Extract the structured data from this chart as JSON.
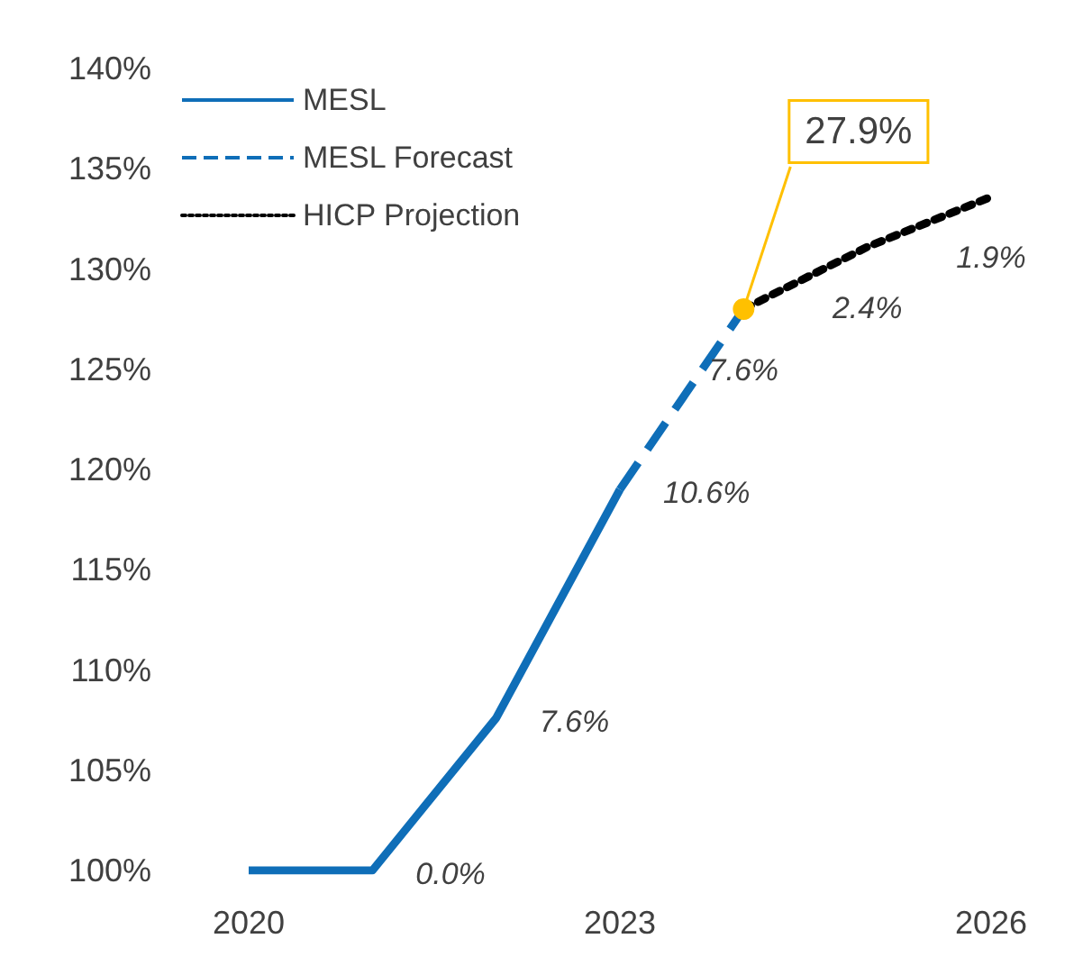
{
  "chart_data": {
    "type": "line",
    "series": [
      {
        "name": "MESL",
        "color": "#0f6eb8",
        "line_style": "solid",
        "x": [
          2020,
          2021,
          2022,
          2023
        ],
        "values": [
          100,
          100,
          107.6,
          119.0
        ]
      },
      {
        "name": "MESL Forecast",
        "color": "#0f6eb8",
        "line_style": "dashed",
        "x": [
          2023,
          2024
        ],
        "values": [
          119.0,
          128.0
        ]
      },
      {
        "name": "HICP Projection",
        "color": "#000000",
        "line_style": "dotted",
        "x": [
          2024,
          2025,
          2026
        ],
        "values": [
          128.0,
          131.1,
          133.6
        ]
      }
    ],
    "xlim": [
      2020,
      2026
    ],
    "xticks": [
      2020,
      2023,
      2026
    ],
    "ylim": [
      100,
      140
    ],
    "yticks": [
      {
        "value": 100,
        "label": "100%"
      },
      {
        "value": 105,
        "label": "105%"
      },
      {
        "value": 110,
        "label": "110%"
      },
      {
        "value": 115,
        "label": "115%"
      },
      {
        "value": 120,
        "label": "120%"
      },
      {
        "value": 125,
        "label": "125%"
      },
      {
        "value": 130,
        "label": "130%"
      },
      {
        "value": 135,
        "label": "135%"
      },
      {
        "value": 140,
        "label": "140%"
      }
    ],
    "annotations": [
      {
        "text": "0.0%",
        "x": 2021,
        "y": 100
      },
      {
        "text": "7.6%",
        "x": 2022,
        "y": 107.6
      },
      {
        "text": "10.6%",
        "x": 2023,
        "y": 119.0
      },
      {
        "text": "7.6%",
        "x": 2024,
        "y": 128.0
      },
      {
        "text": "2.4%",
        "x": 2025,
        "y": 131.1
      },
      {
        "text": "1.9%",
        "x": 2026,
        "y": 133.6
      },
      {
        "text": "27.9%",
        "x": 2024,
        "y": 128.0
      }
    ],
    "grid": false,
    "legend": "top left"
  }
}
